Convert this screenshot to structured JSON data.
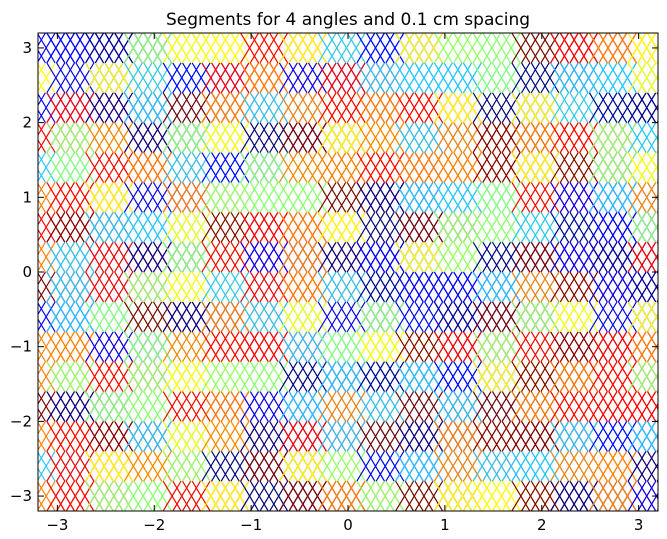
{
  "chart_data": {
    "type": "other",
    "title": "Segments for 4 angles and 0.1 cm spacing",
    "xlabel": "",
    "ylabel": "",
    "xlim": [
      -3.2,
      3.2
    ],
    "ylim": [
      -3.2,
      3.2
    ],
    "x_ticks": [
      -3,
      -2,
      -1,
      0,
      1,
      2,
      3
    ],
    "y_ticks": [
      -3,
      -2,
      -1,
      0,
      1,
      2,
      3
    ],
    "x_tick_labels": [
      "−3",
      "−2",
      "−1",
      "0",
      "1",
      "2",
      "3"
    ],
    "y_tick_labels": [
      "−3",
      "−2",
      "−1",
      "0",
      "1",
      "2",
      "3"
    ],
    "angles_count": 4,
    "spacing_cm": 0.1,
    "colormap": [
      "#00008f",
      "#0000ff",
      "#26c5ff",
      "#8dff72",
      "#ffff00",
      "#ff7f00",
      "#ff0000",
      "#7f0000"
    ],
    "grid": false,
    "legend": "none"
  }
}
